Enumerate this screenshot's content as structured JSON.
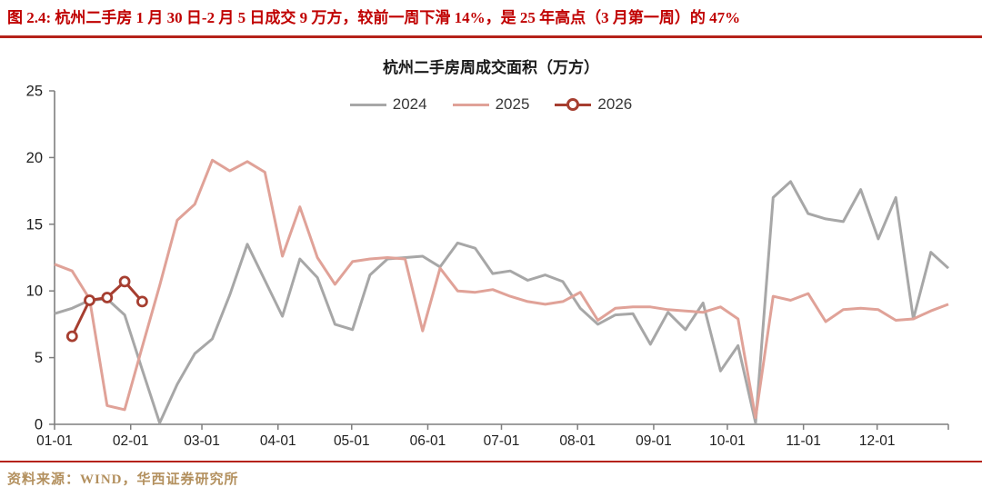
{
  "figure": {
    "caption": "图 2.4: 杭州二手房 1 月 30 日-2 月 5 日成交 9 万方，较前一周下滑 14%，是 25 年高点（3 月第一周）的 47%",
    "source_note": "资料来源：WIND，华西证券研究所"
  },
  "colors": {
    "caption_red": "#c00000",
    "rule_red": "#b52219",
    "source_gold": "#b3905e",
    "axis_line": "#7f7f7f",
    "tick_label": "#1f1f1f",
    "series_2024": "#a7a7a7",
    "series_2025": "#e0a298",
    "series_2026": "#a63e30"
  },
  "chart_data": {
    "type": "line",
    "title": "杭州二手房周成交面积（万方）",
    "xlabel": "",
    "ylabel": "",
    "ylim": [
      0,
      25
    ],
    "y_ticks": [
      0,
      5,
      10,
      15,
      20,
      25
    ],
    "x_tick_labels": [
      "01-01",
      "02-01",
      "03-01",
      "04-01",
      "05-01",
      "06-01",
      "07-01",
      "08-01",
      "09-01",
      "10-01",
      "11-01",
      "12-01"
    ],
    "grid": false,
    "legend_position": "top-center",
    "weeks": 52,
    "series": [
      {
        "name": "2024",
        "color_key": "series_2024",
        "marker": "none",
        "values": [
          8.3,
          8.7,
          9.3,
          9.4,
          8.2,
          4.1,
          0.1,
          3.0,
          5.3,
          6.4,
          9.7,
          13.5,
          10.8,
          8.1,
          12.4,
          11.0,
          7.5,
          7.1,
          11.2,
          12.4,
          12.5,
          12.6,
          11.8,
          13.6,
          13.2,
          11.3,
          11.5,
          10.8,
          11.2,
          10.7,
          8.7,
          7.5,
          8.2,
          8.3,
          6.0,
          8.4,
          7.1,
          9.1,
          4.0,
          5.9,
          0.1,
          17.0,
          18.2,
          15.8,
          15.4,
          15.2,
          17.6,
          13.9,
          17.0,
          7.9,
          12.9,
          11.7
        ]
      },
      {
        "name": "2025",
        "color_key": "series_2025",
        "marker": "none",
        "values": [
          12.0,
          11.5,
          9.4,
          1.4,
          1.1,
          5.8,
          10.4,
          15.3,
          16.5,
          19.8,
          19.0,
          19.7,
          18.9,
          12.6,
          16.3,
          12.5,
          10.5,
          12.2,
          12.4,
          12.5,
          12.4,
          7.0,
          11.7,
          10.0,
          9.9,
          10.1,
          9.6,
          9.2,
          9.0,
          9.2,
          9.9,
          7.8,
          8.7,
          8.8,
          8.8,
          8.6,
          8.5,
          8.4,
          8.8,
          7.9,
          0.5,
          9.6,
          9.3,
          9.8,
          7.7,
          8.6,
          8.7,
          8.6,
          7.8,
          7.9,
          8.5,
          9.0
        ]
      },
      {
        "name": "2026",
        "color_key": "series_2026",
        "marker": "open-circle",
        "weeks": [
          1,
          2,
          3,
          4,
          5
        ],
        "values": [
          6.6,
          9.3,
          9.5,
          10.7,
          9.2
        ]
      }
    ]
  }
}
